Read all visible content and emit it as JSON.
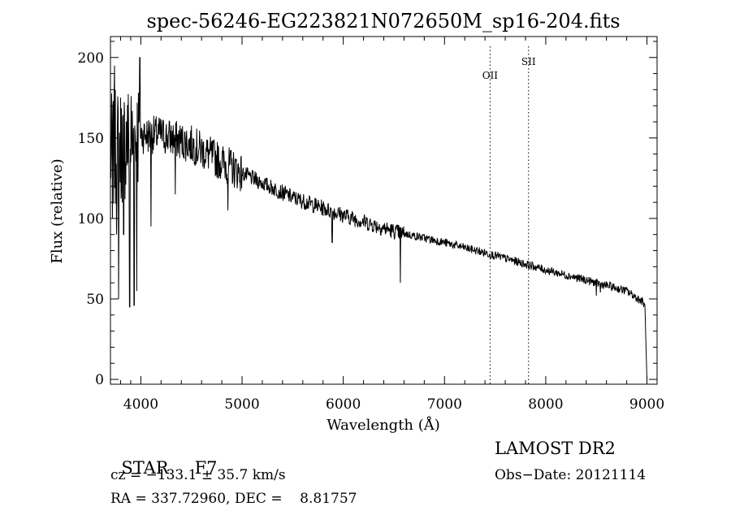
{
  "chart_data": {
    "type": "line",
    "title": "spec-56246-EG223821N072650M_sp16-204.fits",
    "xlabel": "Wavelength (Å)",
    "ylabel": "Flux (relative)",
    "xlim": [
      3700,
      9100
    ],
    "ylim": [
      -3,
      213
    ],
    "xticks": [
      4000,
      5000,
      6000,
      7000,
      8000,
      9000
    ],
    "yticks": [
      0,
      50,
      100,
      150,
      200
    ],
    "grid": false,
    "line_color": "#000000",
    "lines": [
      {
        "name": "OII",
        "x": 7450
      },
      {
        "name": "SII",
        "x": 7830
      }
    ],
    "continuum": {
      "x": [
        3700,
        3800,
        3900,
        4000,
        4200,
        4500,
        4800,
        5000,
        5500,
        6000,
        6500,
        7000,
        7500,
        8000,
        8500,
        8800,
        8960,
        8980,
        9000
      ],
      "y": [
        140,
        145,
        150,
        152,
        152,
        146,
        135,
        128,
        113,
        102,
        92,
        85,
        77,
        68,
        60,
        55,
        48,
        45,
        0
      ]
    },
    "features": [
      {
        "x": 3720,
        "y": 100
      },
      {
        "x": 3740,
        "y": 195
      },
      {
        "x": 3760,
        "y": 90
      },
      {
        "x": 3780,
        "y": 50
      },
      {
        "x": 3800,
        "y": 175
      },
      {
        "x": 3830,
        "y": 90
      },
      {
        "x": 3860,
        "y": 160
      },
      {
        "x": 3890,
        "y": 45
      },
      {
        "x": 3920,
        "y": 140
      },
      {
        "x": 3934,
        "y": 46
      },
      {
        "x": 3960,
        "y": 55
      },
      {
        "x": 3990,
        "y": 200
      },
      {
        "x": 4100,
        "y": 95
      },
      {
        "x": 4340,
        "y": 115
      },
      {
        "x": 4861,
        "y": 105
      },
      {
        "x": 5175,
        "y": 120
      },
      {
        "x": 5890,
        "y": 85
      },
      {
        "x": 6563,
        "y": 60
      },
      {
        "x": 8500,
        "y": 52
      },
      {
        "x": 8540,
        "y": 54
      },
      {
        "x": 8665,
        "y": 56
      }
    ]
  },
  "info": {
    "class_label": "STAR",
    "subclass": "F7",
    "redshift": "cz = −133.1 ± 35.7 km/s",
    "coords": "RA = 337.72960, DEC =    8.81757",
    "survey": "LAMOST DR2",
    "obs_date": "Obs−Date: 20121114"
  }
}
